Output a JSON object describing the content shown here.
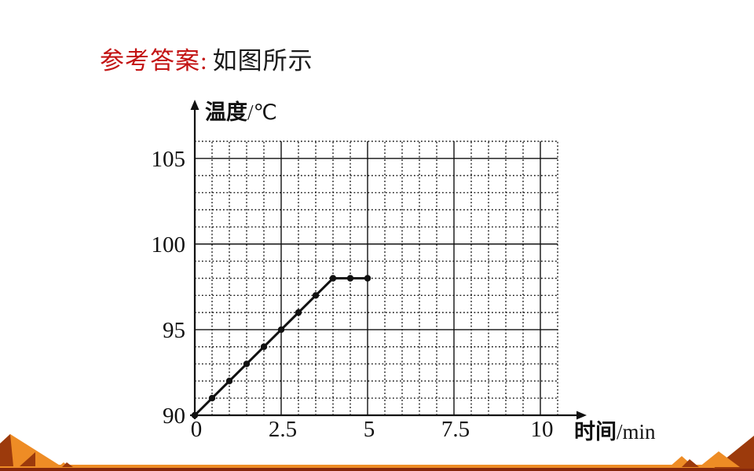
{
  "heading": {
    "answer_label": "参考答案:",
    "answer_text": "如图所示"
  },
  "chart_data": {
    "type": "line",
    "x_axis": {
      "label": "时间/min",
      "min": 0,
      "max": 10.5,
      "major_step": 2.5,
      "minor_step": 0.5,
      "ticks": [
        0,
        2.5,
        5,
        7.5,
        10
      ]
    },
    "y_axis": {
      "label": "温度/℃",
      "min": 90,
      "max": 106,
      "major_step": 5,
      "minor_step": 1,
      "ticks": [
        90,
        95,
        100,
        105
      ]
    },
    "grid": {
      "major": "solid",
      "minor": "dotted"
    },
    "series": [
      {
        "points": [
          [
            0,
            90
          ],
          [
            0.5,
            91
          ],
          [
            1,
            92
          ],
          [
            1.5,
            93
          ],
          [
            2,
            94
          ],
          [
            2.5,
            95
          ],
          [
            3,
            96
          ],
          [
            3.5,
            97
          ],
          [
            4,
            98
          ],
          [
            4.5,
            98
          ],
          [
            5,
            98
          ]
        ],
        "marker": "dot"
      }
    ]
  },
  "colors": {
    "heading_red": "#c31414",
    "ink": "#111111",
    "deco_orange": "#ee8c25",
    "deco_dark_rust": "#9c3a0c",
    "bottom_bar_maroon": "#86280c"
  }
}
